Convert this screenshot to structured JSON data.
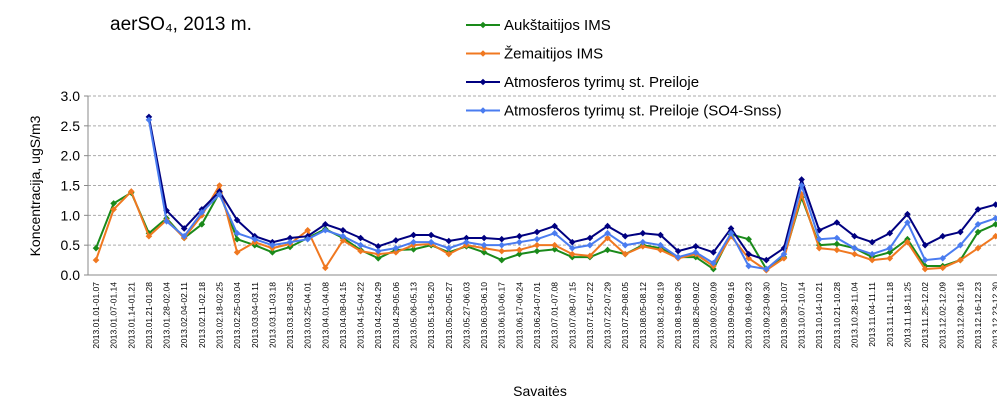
{
  "chart_data": {
    "type": "line",
    "title": "aerSO₄, 2013 m.",
    "x_label": "Savaitės",
    "y_label": "Koncentracija, ugS/m3",
    "categories": [
      "2013.01.01-01.07",
      "2013.01.07-01.14",
      "2013.01.14-01.21",
      "2013.01.21-01.28",
      "2013.01.28-02.04",
      "2013.02.04-02.11",
      "2013.02.11-02.18",
      "2013.02.18-02.25",
      "2013.02.25-03.04",
      "2013.03.04-03.11",
      "2013.03.11-03.18",
      "2013.03.18-03.25",
      "2013.03.25-04.01",
      "2013.04.01-04.08",
      "2013.04.08-04.15",
      "2013.04.15-04.22",
      "2013.04.22-04.29",
      "2013.04.29-05.06",
      "2013.05.06-05.13",
      "2013.05.13-05.20",
      "2013.05.20-05.27",
      "2013.05.27-06.03",
      "2013.06.03-06.10",
      "2013.06.10-06.17",
      "2013.06.17-06.24",
      "2013.06.24-07.01",
      "2013.07.01-07.08",
      "2013.07.08-07.15",
      "2013.07.15-07.22",
      "2013.07.22-07.29",
      "2013.07.29-08.05",
      "2013.08.05-08.12",
      "2013.08.12-08.19",
      "2013.08.19-08.26",
      "2013.08.26-09.02",
      "2013.09.02-09.09",
      "2013.09.09-09.16",
      "2013.09.16-09.23",
      "2013.09.23-09.30",
      "2013.09.30-10.07",
      "2013.10.07-10.14",
      "2013.10.14-10.21",
      "2013.10.21-10.28",
      "2013.10.28-11.04",
      "2013.11.04-11.11",
      "2013.11.11-11.18",
      "2013.11.18-11.25",
      "2013.11.25-12.02",
      "2013.12.02-12.09",
      "2013.12.09-12.16",
      "2013.12.16-12.23",
      "2013.12.23-12.30"
    ],
    "series": [
      {
        "name": "Aukštaitijos IMS",
        "color": "#1a8a1a",
        "values": [
          0.45,
          1.2,
          1.38,
          0.7,
          0.95,
          0.62,
          0.85,
          1.38,
          0.6,
          0.5,
          0.38,
          0.47,
          0.62,
          0.77,
          0.62,
          0.42,
          0.28,
          0.42,
          0.43,
          0.5,
          0.38,
          0.48,
          0.38,
          0.25,
          0.35,
          0.4,
          0.43,
          0.3,
          0.3,
          0.42,
          0.35,
          0.5,
          0.45,
          0.3,
          0.3,
          0.1,
          0.68,
          0.6,
          0.1,
          0.3,
          1.3,
          0.5,
          0.52,
          0.45,
          0.3,
          0.38,
          0.6,
          0.15,
          0.15,
          0.25,
          0.72,
          0.85
        ]
      },
      {
        "name": "Žemaitijos IMS",
        "color": "#f07820",
        "values": [
          0.25,
          1.1,
          1.4,
          0.65,
          0.92,
          0.62,
          1.0,
          1.5,
          0.38,
          0.55,
          0.45,
          0.52,
          0.75,
          0.12,
          0.58,
          0.4,
          0.35,
          0.38,
          0.5,
          0.52,
          0.35,
          0.5,
          0.45,
          0.4,
          0.42,
          0.5,
          0.5,
          0.35,
          0.32,
          0.62,
          0.35,
          0.48,
          0.42,
          0.28,
          0.35,
          0.15,
          0.65,
          0.28,
          0.08,
          0.28,
          1.35,
          0.45,
          0.42,
          0.35,
          0.25,
          0.28,
          0.55,
          0.1,
          0.12,
          0.25,
          0.45,
          0.65
        ]
      },
      {
        "name": "Atmosferos tyrimų st. Preiloje",
        "color": "#000080",
        "values": [
          null,
          null,
          null,
          2.65,
          1.08,
          0.78,
          1.1,
          1.4,
          0.92,
          0.65,
          0.55,
          0.62,
          0.65,
          0.85,
          0.75,
          0.62,
          0.48,
          0.58,
          0.67,
          0.67,
          0.57,
          0.62,
          0.62,
          0.6,
          0.65,
          0.72,
          0.82,
          0.55,
          0.62,
          0.82,
          0.65,
          0.7,
          0.67,
          0.4,
          0.48,
          0.38,
          0.78,
          0.35,
          0.25,
          0.45,
          1.6,
          0.75,
          0.88,
          0.65,
          0.55,
          0.7,
          1.02,
          0.5,
          0.65,
          0.72,
          1.1,
          1.18
        ]
      },
      {
        "name": "Atmosferos tyrimų st. Preiloje (SO4-Snss)",
        "color": "#4a7cf0",
        "values": [
          null,
          null,
          null,
          2.6,
          0.9,
          0.65,
          1.05,
          1.35,
          0.7,
          0.6,
          0.5,
          0.55,
          0.6,
          0.75,
          0.65,
          0.5,
          0.4,
          0.45,
          0.55,
          0.55,
          0.45,
          0.55,
          0.5,
          0.5,
          0.55,
          0.6,
          0.7,
          0.45,
          0.5,
          0.7,
          0.5,
          0.55,
          0.5,
          0.3,
          0.38,
          0.2,
          0.7,
          0.15,
          0.1,
          0.35,
          1.5,
          0.6,
          0.62,
          0.45,
          0.35,
          0.45,
          0.88,
          0.25,
          0.28,
          0.5,
          0.85,
          0.95
        ]
      }
    ],
    "ylim": [
      0,
      3
    ],
    "yticks": [
      {
        "value": 0,
        "label": "0.0"
      },
      0.5,
      {
        "value": 1,
        "label": "1.0"
      },
      1.5,
      {
        "value": 2,
        "label": "2.0"
      },
      2.5,
      {
        "value": 3,
        "label": "3.0"
      }
    ],
    "grid": true,
    "legend_position": "top"
  }
}
